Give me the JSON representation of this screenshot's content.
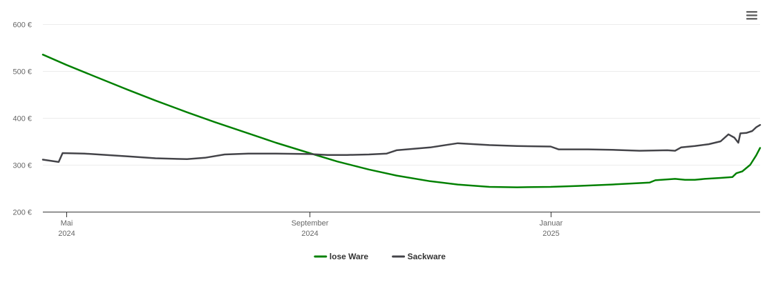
{
  "menu_icon": "hamburger-menu-icon",
  "chart_data": {
    "type": "line",
    "title": "",
    "xlabel": "",
    "ylabel": "",
    "ylim": [
      200,
      600
    ],
    "y_ticks": [
      {
        "value": 200,
        "label": "200 €"
      },
      {
        "value": 300,
        "label": "300 €"
      },
      {
        "value": 400,
        "label": "400 €"
      },
      {
        "value": 500,
        "label": "500 €"
      },
      {
        "value": 600,
        "label": "600 €"
      }
    ],
    "xlim": [
      "2024-04-19",
      "2025-04-17"
    ],
    "x_ticks": [
      {
        "date": "2024-05-01",
        "month": "Mai",
        "year": "2024"
      },
      {
        "date": "2024-09-01",
        "month": "September",
        "year": "2024"
      },
      {
        "date": "2025-01-01",
        "month": "Januar",
        "year": "2025"
      }
    ],
    "grid": true,
    "legend_position": "bottom",
    "series": [
      {
        "name": "lose Ware",
        "color": "#008000",
        "points": [
          [
            "2024-04-19",
            535
          ],
          [
            "2024-05-01",
            513
          ],
          [
            "2024-05-15",
            489
          ],
          [
            "2024-06-01",
            460
          ],
          [
            "2024-06-15",
            437
          ],
          [
            "2024-07-01",
            412
          ],
          [
            "2024-07-15",
            391
          ],
          [
            "2024-08-01",
            367
          ],
          [
            "2024-08-15",
            347
          ],
          [
            "2024-09-01",
            325
          ],
          [
            "2024-09-15",
            307
          ],
          [
            "2024-10-01",
            290
          ],
          [
            "2024-10-15",
            277
          ],
          [
            "2024-11-01",
            265
          ],
          [
            "2024-11-15",
            258
          ],
          [
            "2024-12-01",
            253
          ],
          [
            "2024-12-15",
            252
          ],
          [
            "2025-01-01",
            253
          ],
          [
            "2025-01-15",
            255
          ],
          [
            "2025-02-01",
            258
          ],
          [
            "2025-02-15",
            261
          ],
          [
            "2025-02-20",
            262
          ],
          [
            "2025-02-23",
            267
          ],
          [
            "2025-03-05",
            270
          ],
          [
            "2025-03-10",
            268
          ],
          [
            "2025-03-15",
            268
          ],
          [
            "2025-03-20",
            270
          ],
          [
            "2025-03-28",
            272
          ],
          [
            "2025-04-03",
            274
          ],
          [
            "2025-04-05",
            282
          ],
          [
            "2025-04-08",
            286
          ],
          [
            "2025-04-12",
            300
          ],
          [
            "2025-04-15",
            320
          ],
          [
            "2025-04-17",
            336
          ]
        ]
      },
      {
        "name": "Sackware",
        "color": "#434348",
        "points": [
          [
            "2024-04-19",
            311
          ],
          [
            "2024-04-27",
            306
          ],
          [
            "2024-04-29",
            325
          ],
          [
            "2024-05-10",
            324
          ],
          [
            "2024-06-01",
            318
          ],
          [
            "2024-06-15",
            314
          ],
          [
            "2024-07-01",
            312
          ],
          [
            "2024-07-10",
            315
          ],
          [
            "2024-07-20",
            322
          ],
          [
            "2024-08-01",
            324
          ],
          [
            "2024-08-15",
            324
          ],
          [
            "2024-09-01",
            323
          ],
          [
            "2024-09-10",
            321
          ],
          [
            "2024-09-20",
            321
          ],
          [
            "2024-10-01",
            322
          ],
          [
            "2024-10-10",
            324
          ],
          [
            "2024-10-15",
            331
          ],
          [
            "2024-11-01",
            337
          ],
          [
            "2024-11-15",
            346
          ],
          [
            "2024-12-01",
            342
          ],
          [
            "2024-12-15",
            340
          ],
          [
            "2025-01-01",
            339
          ],
          [
            "2025-01-05",
            333
          ],
          [
            "2025-01-20",
            333
          ],
          [
            "2025-02-01",
            332
          ],
          [
            "2025-02-15",
            330
          ],
          [
            "2025-03-01",
            331
          ],
          [
            "2025-03-05",
            330
          ],
          [
            "2025-03-08",
            337
          ],
          [
            "2025-03-15",
            340
          ],
          [
            "2025-03-22",
            344
          ],
          [
            "2025-03-28",
            350
          ],
          [
            "2025-04-01",
            365
          ],
          [
            "2025-04-04",
            358
          ],
          [
            "2025-04-06",
            347
          ],
          [
            "2025-04-07",
            367
          ],
          [
            "2025-04-10",
            368
          ],
          [
            "2025-04-13",
            372
          ],
          [
            "2025-04-15",
            380
          ],
          [
            "2025-04-17",
            385
          ]
        ]
      }
    ]
  }
}
